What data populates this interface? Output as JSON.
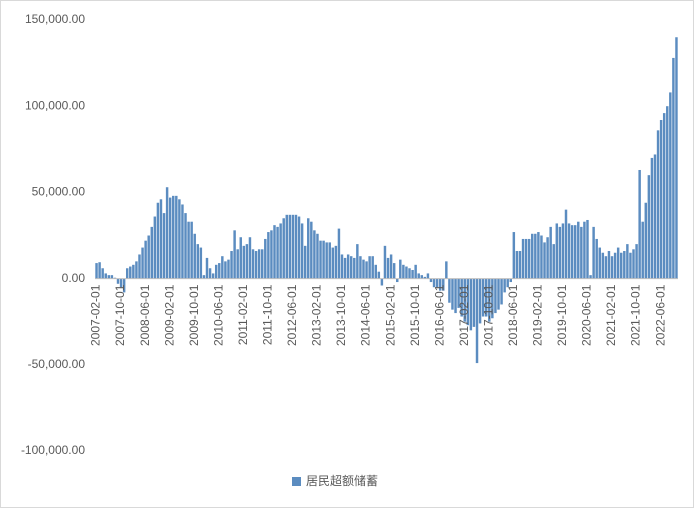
{
  "chart_data": {
    "type": "bar",
    "categories": [
      "2007-02-01",
      null,
      null,
      null,
      null,
      null,
      null,
      null,
      "2007-10-01",
      null,
      null,
      null,
      null,
      null,
      null,
      null,
      "2008-06-01",
      null,
      null,
      null,
      null,
      null,
      null,
      null,
      "2009-02-01",
      null,
      null,
      null,
      null,
      null,
      null,
      null,
      "2009-10-01",
      null,
      null,
      null,
      null,
      null,
      null,
      null,
      "2010-06-01",
      null,
      null,
      null,
      null,
      null,
      null,
      null,
      "2011-02-01",
      null,
      null,
      null,
      null,
      null,
      null,
      null,
      "2011-10-01",
      null,
      null,
      null,
      null,
      null,
      null,
      null,
      "2012-06-01",
      null,
      null,
      null,
      null,
      null,
      null,
      null,
      "2013-02-01",
      null,
      null,
      null,
      null,
      null,
      null,
      null,
      "2013-10-01",
      null,
      null,
      null,
      null,
      null,
      null,
      null,
      "2014-06-01",
      null,
      null,
      null,
      null,
      null,
      null,
      null,
      "2015-02-01",
      null,
      null,
      null,
      null,
      null,
      null,
      null,
      "2015-10-01",
      null,
      null,
      null,
      null,
      null,
      null,
      null,
      "2016-06-01",
      null,
      null,
      null,
      null,
      null,
      null,
      null,
      "2017-02-01",
      null,
      null,
      null,
      null,
      null,
      null,
      null,
      "2017-10-01",
      null,
      null,
      null,
      null,
      null,
      null,
      null,
      "2018-06-01",
      null,
      null,
      null,
      null,
      null,
      null,
      null,
      "2019-02-01",
      null,
      null,
      null,
      null,
      null,
      null,
      null,
      "2019-10-01",
      null,
      null,
      null,
      null,
      null,
      null,
      null,
      "2020-06-01",
      null,
      null,
      null,
      null,
      null,
      null,
      null,
      "2021-02-01",
      null,
      null,
      null,
      null,
      null,
      null,
      null,
      "2021-10-01",
      null,
      null,
      null,
      null,
      null,
      null,
      null,
      "2022-06-01",
      null,
      null,
      null,
      null,
      null
    ],
    "series": [
      {
        "name": "居民超额储蓄",
        "color": "#5b8cc0",
        "values": [
          9000,
          9500,
          6000,
          3000,
          2000,
          2000,
          500,
          -3000,
          -5000,
          -8000,
          6000,
          7000,
          8000,
          10000,
          14000,
          18000,
          22000,
          25000,
          30000,
          36000,
          44000,
          46000,
          38000,
          53000,
          47000,
          48000,
          48000,
          46000,
          43000,
          38000,
          33000,
          33000,
          26000,
          20000,
          18000,
          2000,
          12000,
          6000,
          3000,
          8000,
          9000,
          13000,
          10000,
          11000,
          16000,
          28000,
          17000,
          24000,
          19000,
          20000,
          24000,
          17000,
          16000,
          17000,
          17000,
          23000,
          27000,
          28000,
          31000,
          30000,
          32000,
          35000,
          37000,
          37000,
          37000,
          37000,
          36000,
          32000,
          19000,
          35000,
          33000,
          28000,
          26000,
          22000,
          22000,
          21000,
          21000,
          18000,
          19000,
          29000,
          14000,
          12000,
          14000,
          13000,
          12000,
          20000,
          13000,
          11000,
          10000,
          13000,
          13000,
          8000,
          4000,
          -4000,
          19000,
          12000,
          14000,
          9000,
          -2000,
          11000,
          8000,
          7000,
          6000,
          5000,
          8000,
          3000,
          2000,
          1000,
          3000,
          -2000,
          -5000,
          -5000,
          -7000,
          -7000,
          10000,
          -14000,
          -18000,
          -20000,
          -17000,
          -22000,
          -25000,
          -27000,
          -30000,
          -28000,
          -49000,
          -26000,
          -22000,
          -22000,
          -25000,
          -23000,
          -20000,
          -18000,
          -15000,
          -8000,
          -5000,
          -2000,
          27000,
          16000,
          16000,
          23000,
          23000,
          23000,
          26000,
          26000,
          27000,
          25000,
          21000,
          24000,
          30000,
          20000,
          32000,
          30000,
          32000,
          40000,
          32000,
          31000,
          31000,
          33000,
          30000,
          33000,
          34000,
          2000,
          30000,
          23000,
          18000,
          15000,
          13000,
          16000,
          13000,
          15000,
          18000,
          15000,
          16000,
          20000,
          15000,
          17000,
          20000,
          63000,
          33000,
          44000,
          60000,
          70000,
          72000,
          86000,
          92000,
          96000,
          100000,
          108000,
          128000,
          140000
        ]
      }
    ],
    "ylim": [
      -100000,
      150000
    ],
    "yticks": [
      {
        "value": -100000,
        "label": "-100,000.00"
      },
      {
        "value": -50000,
        "label": "-50,000.00"
      },
      {
        "value": 0,
        "label": "0.00"
      },
      {
        "value": 50000,
        "label": "50,000.00"
      },
      {
        "value": 100000,
        "label": "100,000.00"
      },
      {
        "value": 150000,
        "label": "150,000.00"
      }
    ],
    "grid": false,
    "legend": "bottom"
  }
}
